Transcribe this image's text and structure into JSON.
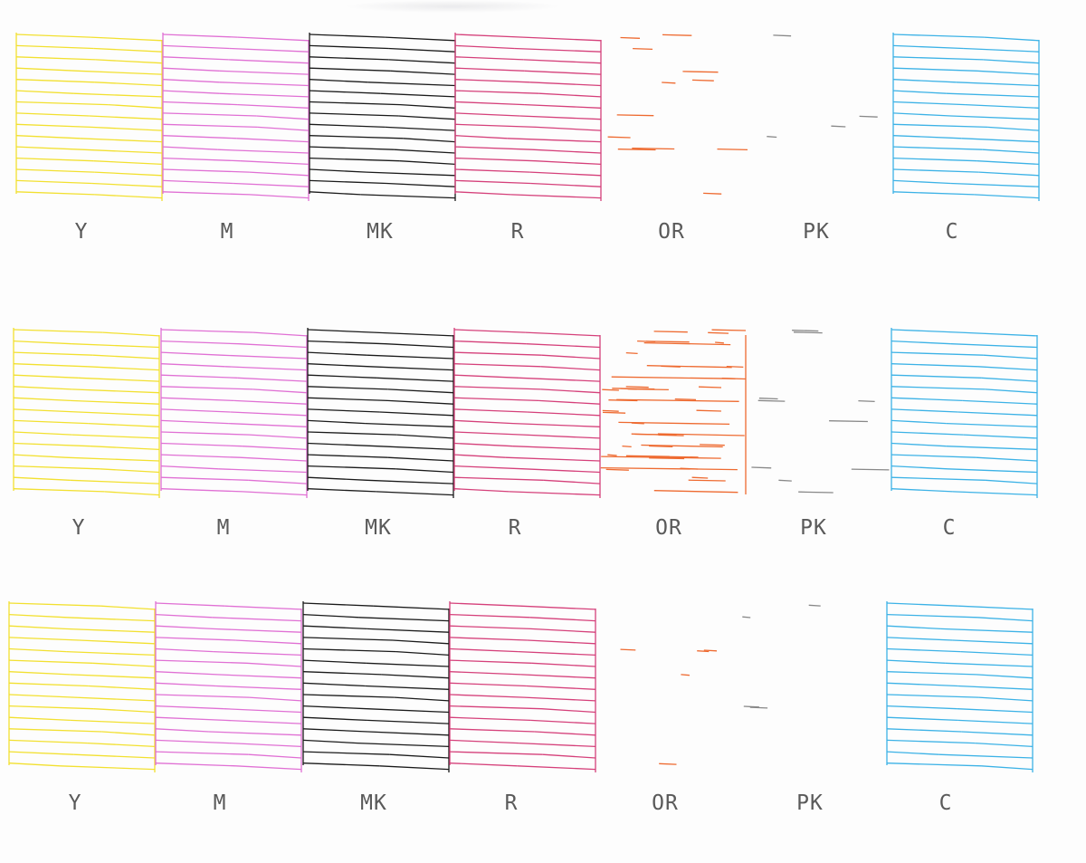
{
  "colors": {
    "Y": "#f2e030",
    "M": "#e070d4",
    "MK": "#1a1a1a",
    "R": "#d5407a",
    "OR": "#ee6a30",
    "PK": "#888888",
    "C": "#3cb2e6",
    "label": "#5a5a5a",
    "paper": "#fdfdfd"
  },
  "patterns": [
    {
      "channels": [
        {
          "key": "Y",
          "label": "Y",
          "status": "ok",
          "coverage": 0.97
        },
        {
          "key": "M",
          "label": "M",
          "status": "ok",
          "coverage": 1.0
        },
        {
          "key": "MK",
          "label": "MK",
          "status": "ok",
          "coverage": 1.0
        },
        {
          "key": "R",
          "label": "R",
          "status": "ok",
          "coverage": 1.0
        },
        {
          "key": "OR",
          "label": "OR",
          "status": "partial",
          "coverage": 0.15
        },
        {
          "key": "PK",
          "label": "PK",
          "status": "missing",
          "coverage": 0.02
        },
        {
          "key": "C",
          "label": "C",
          "status": "ok",
          "coverage": 1.0
        }
      ]
    },
    {
      "channels": [
        {
          "key": "Y",
          "label": "Y",
          "status": "ok",
          "coverage": 0.98
        },
        {
          "key": "M",
          "label": "M",
          "status": "ok",
          "coverage": 1.0
        },
        {
          "key": "MK",
          "label": "MK",
          "status": "ok",
          "coverage": 1.0
        },
        {
          "key": "R",
          "label": "R",
          "status": "ok",
          "coverage": 1.0
        },
        {
          "key": "OR",
          "label": "OR",
          "status": "partial",
          "coverage": 0.55
        },
        {
          "key": "PK",
          "label": "PK",
          "status": "partial",
          "coverage": 0.12
        },
        {
          "key": "C",
          "label": "C",
          "status": "ok",
          "coverage": 1.0
        }
      ]
    },
    {
      "channels": [
        {
          "key": "Y",
          "label": "Y",
          "status": "ok",
          "coverage": 0.98
        },
        {
          "key": "M",
          "label": "M",
          "status": "ok",
          "coverage": 1.0
        },
        {
          "key": "MK",
          "label": "MK",
          "status": "ok",
          "coverage": 1.0
        },
        {
          "key": "R",
          "label": "R",
          "status": "ok",
          "coverage": 1.0
        },
        {
          "key": "OR",
          "label": "OR",
          "status": "missing",
          "coverage": 0.03
        },
        {
          "key": "PK",
          "label": "PK",
          "status": "missing",
          "coverage": 0.02
        },
        {
          "key": "C",
          "label": "C",
          "status": "ok",
          "coverage": 1.0
        }
      ]
    }
  ]
}
